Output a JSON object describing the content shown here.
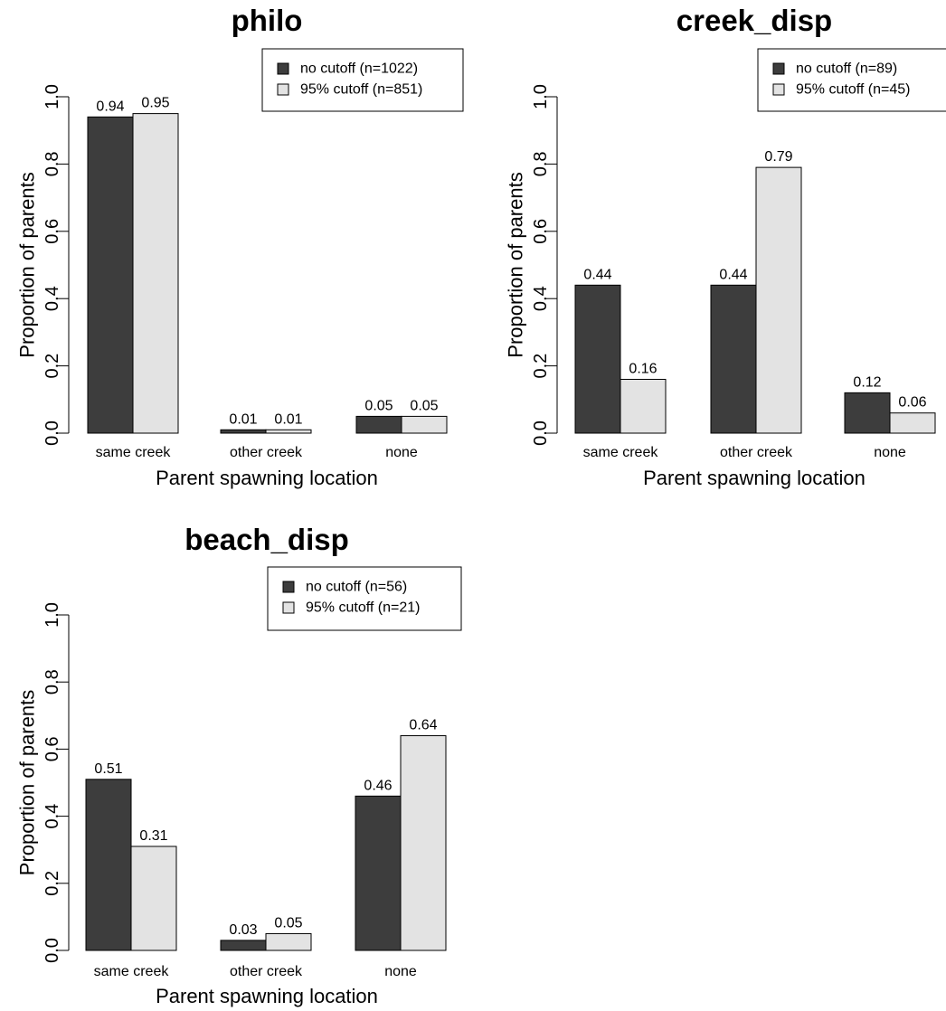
{
  "colors": {
    "series_dark": "#3d3d3d",
    "series_light": "#e3e3e3",
    "stroke": "#000000"
  },
  "chart_data": [
    {
      "type": "bar",
      "title": "philo",
      "xlabel": "Parent spawning location",
      "ylabel": "Proportion of parents",
      "ylim": [
        0,
        1.0
      ],
      "yticks": [
        "0.0",
        "0.2",
        "0.4",
        "0.6",
        "0.8",
        "1.0"
      ],
      "categories": [
        "same creek",
        "other creek",
        "none"
      ],
      "legend_position": "top-right",
      "grid": false,
      "series": [
        {
          "name": "no cutoff (n=1022)",
          "values": [
            0.94,
            0.01,
            0.05
          ],
          "labels": [
            "0.94",
            "0.01",
            "0.05"
          ]
        },
        {
          "name": "95% cutoff (n=851)",
          "values": [
            0.95,
            0.01,
            0.05
          ],
          "labels": [
            "0.95",
            "0.01",
            "0.05"
          ]
        }
      ]
    },
    {
      "type": "bar",
      "title": "creek_disp",
      "xlabel": "Parent spawning location",
      "ylabel": "Proportion of parents",
      "ylim": [
        0,
        1.0
      ],
      "yticks": [
        "0.0",
        "0.2",
        "0.4",
        "0.6",
        "0.8",
        "1.0"
      ],
      "categories": [
        "same creek",
        "other creek",
        "none"
      ],
      "legend_position": "top-right",
      "grid": false,
      "series": [
        {
          "name": "no cutoff (n=89)",
          "values": [
            0.44,
            0.44,
            0.12
          ],
          "labels": [
            "0.44",
            "0.44",
            "0.12"
          ]
        },
        {
          "name": "95% cutoff (n=45)",
          "values": [
            0.16,
            0.79,
            0.06
          ],
          "labels": [
            "0.16",
            "0.79",
            "0.06"
          ]
        }
      ]
    },
    {
      "type": "bar",
      "title": "beach_disp",
      "xlabel": "Parent spawning location",
      "ylabel": "Proportion of parents",
      "ylim": [
        0,
        1.0
      ],
      "yticks": [
        "0.0",
        "0.2",
        "0.4",
        "0.6",
        "0.8",
        "1.0"
      ],
      "categories": [
        "same creek",
        "other creek",
        "none"
      ],
      "legend_position": "top-right",
      "grid": false,
      "series": [
        {
          "name": "no cutoff (n=56)",
          "values": [
            0.51,
            0.03,
            0.46
          ],
          "labels": [
            "0.51",
            "0.03",
            "0.46"
          ]
        },
        {
          "name": "95% cutoff (n=21)",
          "values": [
            0.31,
            0.05,
            0.64
          ],
          "labels": [
            "0.31",
            "0.05",
            "0.64"
          ]
        }
      ]
    }
  ]
}
